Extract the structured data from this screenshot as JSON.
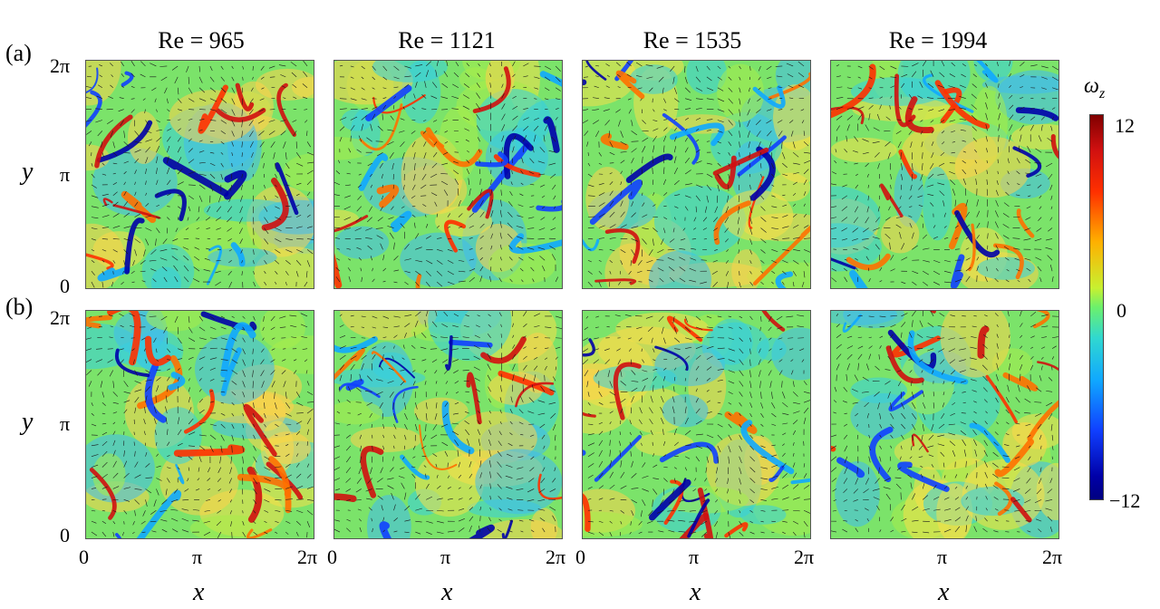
{
  "columns": [
    "Re = 965",
    "Re = 1121",
    "Re = 1535",
    "Re = 1994"
  ],
  "rows": [
    "(a)",
    "(b)"
  ],
  "y_ticks": [
    "2π",
    "π",
    "0"
  ],
  "x_ticks": [
    "0",
    "π",
    "2π"
  ],
  "x_axis_label": "x",
  "y_axis_label": "y",
  "colorbar": {
    "label": "ω",
    "label_subscript": "z",
    "max": "12",
    "mid": "0",
    "min": "−12",
    "colors": [
      "#800000",
      "#d01010",
      "#ff3000",
      "#ffb000",
      "#c8f030",
      "#6cf06c",
      "#30d8d0",
      "#10a8ff",
      "#1040ff",
      "#0000a8",
      "#000080"
    ]
  }
}
